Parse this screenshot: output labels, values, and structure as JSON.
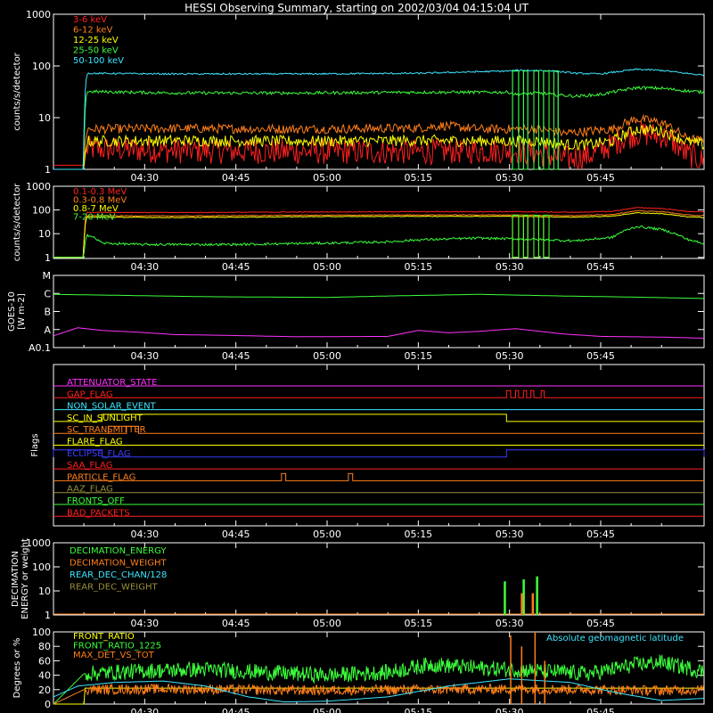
{
  "title": "HESSI Observing Summary, starting on 2002/03/04 04:15:04 UT",
  "time_ticks": [
    "04:30",
    "04:45",
    "05:00",
    "05:15",
    "05:30",
    "05:45"
  ],
  "time_tick_minutes": [
    15,
    30,
    45,
    60,
    75,
    90
  ],
  "time_range_minutes": [
    0,
    107
  ],
  "chart_data": [
    {
      "id": "rates",
      "type": "line",
      "ylabel": "counts/s/detector",
      "yscale": "log",
      "ylim": [
        1,
        1000
      ],
      "yticks": [
        "1",
        "10",
        "100",
        "1000"
      ],
      "grid": false,
      "legend_position": "top-left",
      "series": [
        {
          "name": "3-6 keV",
          "color": "#ff2020",
          "x": [
            0,
            5,
            5.5,
            20,
            40,
            60,
            75,
            80,
            84,
            88,
            92,
            96,
            100,
            104,
            107
          ],
          "y": [
            1.2,
            1.2,
            2.5,
            2.3,
            2.2,
            2.2,
            2.3,
            2.0,
            1.6,
            1.8,
            3.0,
            5.0,
            4.5,
            2.0,
            1.4
          ]
        },
        {
          "name": "6-12 keV",
          "color": "#ff7f1a",
          "x": [
            0,
            5,
            5.5,
            20,
            40,
            60,
            64,
            70,
            75,
            80,
            84,
            88,
            92,
            96,
            100,
            104,
            107
          ],
          "y": [
            1.0,
            1.0,
            6.0,
            6.2,
            6.0,
            6.3,
            7.0,
            6.0,
            6.0,
            6.0,
            5.0,
            5.5,
            6.0,
            9.5,
            8.0,
            4.0,
            3.5
          ]
        },
        {
          "name": "12-25 keV",
          "color": "#ffff00",
          "x": [
            0,
            5,
            5.5,
            20,
            40,
            60,
            75,
            80,
            84,
            88,
            92,
            96,
            100,
            104,
            107
          ],
          "y": [
            1.0,
            1.0,
            3.5,
            3.6,
            3.5,
            3.6,
            3.5,
            3.5,
            3.0,
            3.0,
            3.5,
            6.0,
            5.5,
            3.5,
            3.0
          ]
        },
        {
          "name": "25-50 keV",
          "color": "#3cff3c",
          "x": [
            0,
            5,
            5.5,
            20,
            40,
            60,
            75,
            76,
            80,
            82,
            86,
            90,
            96,
            100,
            104,
            107
          ],
          "y": [
            1.0,
            1.0,
            32,
            30,
            30,
            31,
            31,
            28,
            30,
            28,
            26,
            28,
            38,
            37,
            33,
            31
          ]
        },
        {
          "name": "50-100 keV",
          "color": "#3ce6ff",
          "x": [
            0,
            5,
            5.5,
            20,
            40,
            60,
            75,
            76,
            80,
            82,
            86,
            90,
            96,
            100,
            104,
            107
          ],
          "y": [
            1.0,
            1.0,
            72,
            70,
            70,
            72,
            80,
            82,
            82,
            80,
            72,
            70,
            86,
            82,
            72,
            66
          ]
        }
      ]
    },
    {
      "id": "high_energy",
      "type": "line",
      "ylabel": "counts/s/detector",
      "yscale": "log",
      "ylim": [
        0.9,
        1000
      ],
      "yticks": [
        "1",
        "10",
        "100",
        "1000"
      ],
      "grid": false,
      "legend_position": "top-left",
      "series": [
        {
          "name": "0.1-0.3 MeV",
          "color": "#ff2020",
          "x": [
            0,
            5,
            5.5,
            20,
            40,
            60,
            75,
            86,
            92,
            96,
            100,
            104,
            107
          ],
          "y": [
            1.0,
            1.0,
            80,
            78,
            82,
            85,
            85,
            80,
            88,
            125,
            115,
            88,
            82
          ]
        },
        {
          "name": "0.3-0.8 MeV",
          "color": "#ff7f1a",
          "x": [
            0,
            5,
            5.5,
            20,
            40,
            60,
            75,
            86,
            92,
            96,
            100,
            104,
            107
          ],
          "y": [
            1.0,
            1.0,
            58,
            56,
            60,
            62,
            62,
            58,
            65,
            92,
            85,
            62,
            58
          ]
        },
        {
          "name": "0.8-7 MeV",
          "color": "#ffff00",
          "x": [
            0,
            5,
            5.5,
            20,
            40,
            60,
            75,
            86,
            92,
            96,
            100,
            104,
            107
          ],
          "y": [
            1.0,
            1.0,
            50,
            48,
            52,
            54,
            54,
            50,
            55,
            76,
            70,
            52,
            48
          ]
        },
        {
          "name": "7-20 MeV",
          "color": "#3cff3c",
          "x": [
            0,
            5,
            5.5,
            8,
            14,
            30,
            45,
            55,
            60,
            70,
            76,
            86,
            92,
            96,
            100,
            104,
            107
          ],
          "y": [
            1.0,
            1.0,
            9,
            4.0,
            3.5,
            3.5,
            4.0,
            4.5,
            5.5,
            6.5,
            6.0,
            5.0,
            7.0,
            20,
            15,
            6.0,
            3.5
          ]
        }
      ]
    },
    {
      "id": "goes",
      "type": "line",
      "ylabel": "GOES-10 [W m-2]",
      "yticks": [
        "A0.1",
        "A",
        "B",
        "C",
        "M"
      ],
      "ylim": [
        0,
        4
      ],
      "grid": false,
      "series": [
        {
          "color": "#3cff3c",
          "x": [
            0,
            10,
            25,
            45,
            55,
            70,
            85,
            95,
            107
          ],
          "y": [
            2.95,
            2.9,
            2.82,
            2.78,
            2.86,
            2.95,
            2.85,
            2.8,
            2.72
          ]
        },
        {
          "color": "#ff33ff",
          "x": [
            0,
            4,
            8,
            14,
            20,
            28,
            40,
            55,
            60,
            65,
            70,
            76,
            84,
            90,
            100,
            107
          ],
          "y": [
            0.65,
            1.1,
            0.95,
            0.85,
            0.72,
            0.68,
            0.6,
            0.62,
            0.95,
            0.82,
            0.9,
            1.05,
            0.75,
            0.62,
            0.58,
            0.52
          ]
        }
      ]
    },
    {
      "id": "flags",
      "type": "line",
      "ylabel": "Flags",
      "grid": false,
      "series": [
        {
          "name": "ATTENUATOR_STATE",
          "color": "#ff33ff",
          "steps": []
        },
        {
          "name": "GAP_FLAG",
          "color": "#ff2020",
          "steps": [
            [
              74.5,
              75.2
            ],
            [
              76.0,
              76.5
            ],
            [
              77.3,
              77.8
            ],
            [
              78.5,
              79.0
            ],
            [
              80.2,
              80.7
            ]
          ]
        },
        {
          "name": "NON_SOLAR_EVENT",
          "color": "#3ce6ff",
          "steps": []
        },
        {
          "name": "SC_IN_SUNLIGHT",
          "color": "#ffff00",
          "steps": [
            [
              8.0,
              74.5
            ]
          ]
        },
        {
          "name": "SC_TRANSMITTER",
          "color": "#ff7f1a",
          "steps": [
            [
              9.0,
              12.0
            ],
            [
              9.0,
              14.0
            ]
          ]
        },
        {
          "name": "FLARE_FLAG",
          "color": "#ffff00",
          "steps": []
        },
        {
          "name": "ECLIPSE_FLAG",
          "color": "#3c3cff",
          "steps": [
            [
              0,
              8.0
            ],
            [
              74.5,
              107
            ]
          ]
        },
        {
          "name": "SAA_FLAG",
          "color": "#ff2020",
          "steps": []
        },
        {
          "name": "PARTICLE_FLAG",
          "color": "#ff7f1a",
          "steps": [
            [
              37.5,
              38.2
            ],
            [
              48.5,
              49.2
            ]
          ]
        },
        {
          "name": "AAZ_FLAG",
          "color": "#9a8f3a",
          "steps": []
        },
        {
          "name": "FRONTS_OFF",
          "color": "#3cff3c",
          "steps": []
        },
        {
          "name": "BAD_PACKETS",
          "color": "#ff2020",
          "steps": []
        }
      ]
    },
    {
      "id": "decimation",
      "type": "line",
      "ylabel": "DECIMATION ENERGY or weight",
      "yscale": "log",
      "ylim": [
        1,
        1000
      ],
      "yticks": [
        "1",
        "10",
        "100",
        "1000"
      ],
      "grid": false,
      "legend_position": "top-left",
      "series": [
        {
          "name": "DECIMATION_ENERGY",
          "color": "#3cff3c",
          "spikes": [
            [
              74.2,
              25
            ],
            [
              77.3,
              30
            ],
            [
              79.5,
              40
            ]
          ]
        },
        {
          "name": "DECIMATION_WEIGHT",
          "color": "#ff7f1a",
          "spikes": [
            [
              77.0,
              8
            ],
            [
              78.8,
              8
            ]
          ]
        },
        {
          "name": "REAR_DEC_CHAN/128",
          "color": "#3ce6ff",
          "spikes": []
        },
        {
          "name": "REAR_DEC_WEIGHT",
          "color": "#9a8f3a",
          "spikes": []
        }
      ]
    },
    {
      "id": "ratios",
      "type": "line",
      "ylabel": "Degrees or %",
      "ylim": [
        0,
        100
      ],
      "yticks": [
        "0",
        "20",
        "40",
        "60",
        "80",
        "100"
      ],
      "grid": false,
      "legend_position": "top-left",
      "annotation": "Absolute geomagnetic latitude",
      "series": [
        {
          "name": "FRONT_RATIO",
          "color": "#ffff00",
          "x": [
            0,
            5,
            107
          ],
          "y": [
            0,
            0,
            0
          ]
        },
        {
          "name": "FRONT_RATIO_1225",
          "color": "#3cff3c",
          "x": [
            0,
            5,
            15,
            25,
            35,
            45,
            55,
            62,
            70,
            75,
            80,
            88,
            96,
            100,
            107
          ],
          "y": [
            0,
            42,
            46,
            48,
            44,
            40,
            44,
            55,
            50,
            48,
            46,
            42,
            55,
            58,
            45
          ]
        },
        {
          "name": "MAX_DET_VS_TOT",
          "color": "#ff7f1a",
          "x": [
            0,
            5,
            20,
            40,
            60,
            80,
            100,
            107
          ],
          "y": [
            0,
            20,
            21,
            19,
            20,
            21,
            19,
            20
          ]
        },
        {
          "name": "Absolute geomagnetic latitude",
          "color": "#3ce6ff",
          "x": [
            0,
            4,
            10,
            18,
            25,
            32,
            38,
            45,
            55,
            65,
            75,
            85,
            93,
            100,
            107
          ],
          "y": [
            10,
            25,
            30,
            32,
            25,
            10,
            3,
            4,
            10,
            25,
            35,
            30,
            15,
            5,
            8
          ]
        }
      ]
    }
  ]
}
